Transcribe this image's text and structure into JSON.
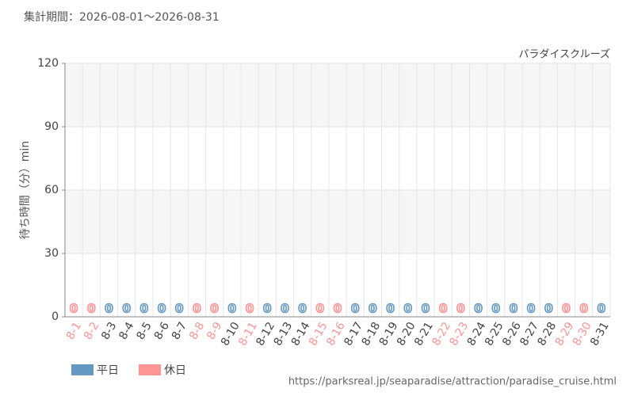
{
  "header": "集計期間：2026-08-01～2026-08-31",
  "footer": "https://parksreal.jp/seaparadise/attraction/paradise_cruise.html",
  "chart_data": {
    "type": "bar",
    "title": "パラダイスクルーズ",
    "ylabel": "待ち時間（分）min",
    "categories": [
      "8-1",
      "8-2",
      "8-3",
      "8-4",
      "8-5",
      "8-6",
      "8-7",
      "8-8",
      "8-9",
      "8-10",
      "8-11",
      "8-12",
      "8-13",
      "8-14",
      "8-15",
      "8-16",
      "8-17",
      "8-18",
      "8-19",
      "8-20",
      "8-21",
      "8-22",
      "8-23",
      "8-24",
      "8-25",
      "8-26",
      "8-27",
      "8-28",
      "8-29",
      "8-30",
      "8-31"
    ],
    "series": [
      {
        "name": "平日",
        "color": "#6699c2",
        "values": [
          null,
          null,
          0,
          0,
          0,
          0,
          0,
          null,
          null,
          0,
          null,
          0,
          0,
          0,
          null,
          null,
          0,
          0,
          0,
          0,
          0,
          null,
          null,
          0,
          0,
          0,
          0,
          0,
          null,
          null,
          0
        ]
      },
      {
        "name": "休日",
        "color": "#ff9494",
        "values": [
          0,
          0,
          null,
          null,
          null,
          null,
          null,
          0,
          0,
          null,
          0,
          null,
          null,
          null,
          0,
          0,
          null,
          null,
          null,
          null,
          null,
          0,
          0,
          null,
          null,
          null,
          null,
          null,
          0,
          0,
          null
        ]
      }
    ],
    "ylim": [
      0,
      120
    ],
    "yticks": [
      0,
      30,
      60,
      90,
      120
    ],
    "grid": true,
    "legend": "bottom-left"
  }
}
